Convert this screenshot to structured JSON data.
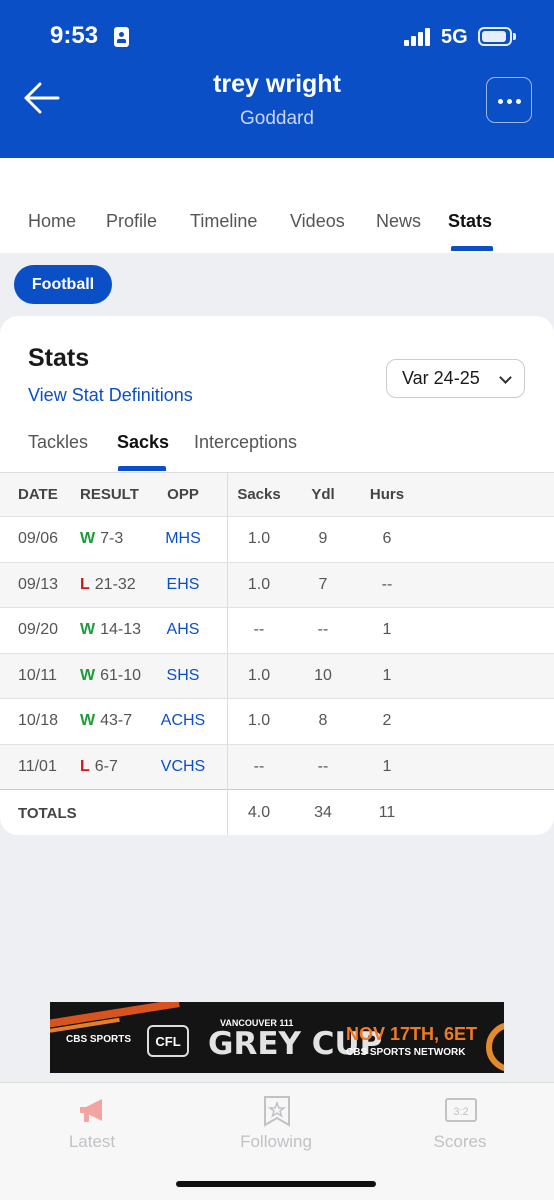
{
  "status_bar": {
    "time": "9:53",
    "network": "5G"
  },
  "header": {
    "title": "trey wright",
    "subtitle": "Goddard"
  },
  "tabs": [
    {
      "label": "Home"
    },
    {
      "label": "Profile"
    },
    {
      "label": "Timeline"
    },
    {
      "label": "Videos"
    },
    {
      "label": "News"
    },
    {
      "label": "Stats",
      "active": true
    }
  ],
  "sport_filter": {
    "label": "Football"
  },
  "stats_card": {
    "title": "Stats",
    "definitions_link": "View Stat Definitions",
    "season_select": "Var 24-25",
    "subtabs": [
      {
        "label": "Tackles"
      },
      {
        "label": "Sacks",
        "active": true
      },
      {
        "label": "Interceptions"
      }
    ],
    "columns": [
      "DATE",
      "RESULT",
      "OPP",
      "Sacks",
      "Ydl",
      "Hurs"
    ],
    "rows": [
      {
        "date": "09/06",
        "wl": "W",
        "score": "7-3",
        "opp": "MHS",
        "sacks": "1.0",
        "ydl": "9",
        "hurs": "6"
      },
      {
        "date": "09/13",
        "wl": "L",
        "score": "21-32",
        "opp": "EHS",
        "sacks": "1.0",
        "ydl": "7",
        "hurs": "--"
      },
      {
        "date": "09/20",
        "wl": "W",
        "score": "14-13",
        "opp": "AHS",
        "sacks": "--",
        "ydl": "--",
        "hurs": "1"
      },
      {
        "date": "10/11",
        "wl": "W",
        "score": "61-10",
        "opp": "SHS",
        "sacks": "1.0",
        "ydl": "10",
        "hurs": "1"
      },
      {
        "date": "10/18",
        "wl": "W",
        "score": "43-7",
        "opp": "ACHS",
        "sacks": "1.0",
        "ydl": "8",
        "hurs": "2"
      },
      {
        "date": "11/01",
        "wl": "L",
        "score": "6-7",
        "opp": "VCHS",
        "sacks": "--",
        "ydl": "--",
        "hurs": "1"
      }
    ],
    "totals": {
      "label": "TOTALS",
      "sacks": "4.0",
      "ydl": "34",
      "hurs": "11"
    }
  },
  "ad": {
    "cbs": "CBS SPORTS",
    "cfl": "CFL",
    "event_city": "VANCOUVER 111",
    "event": "GREY CUP",
    "date": "NOV 17TH, 6ET",
    "network": "CBS SPORTS NETWORK"
  },
  "bottom_nav": [
    {
      "label": "Latest",
      "icon": "megaphone-icon"
    },
    {
      "label": "Following",
      "icon": "bookmark-star-icon"
    },
    {
      "label": "Scores",
      "icon": "scoreboard-icon"
    }
  ],
  "colors": {
    "brand": "#0b4fc6",
    "win": "#1e9b3a",
    "loss": "#cc1818"
  }
}
